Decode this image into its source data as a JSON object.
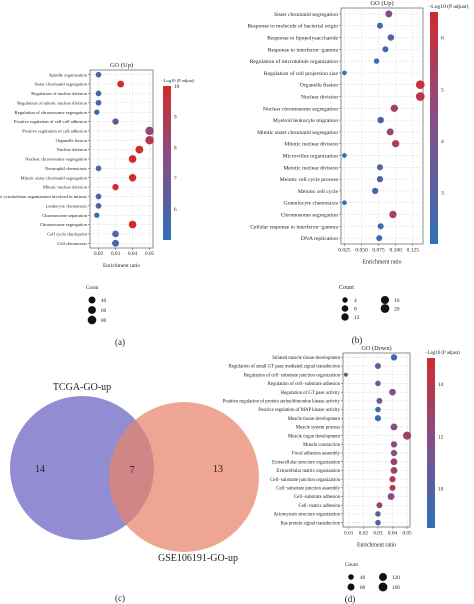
{
  "chart_data": [
    {
      "panel_label": "(a)",
      "type": "scatter",
      "title": "GO (Up)",
      "xlabel": "Enrichment ratio",
      "xlim": [
        0.015,
        0.052
      ],
      "xticks": [
        0.02,
        0.03,
        0.04,
        0.05
      ],
      "xtick_labels": [
        "0.02",
        "0.03",
        "0.04",
        "0.05"
      ],
      "categories": [
        "Spindle organization",
        "Sister chromatid segregation",
        "Regulation of nuclear division",
        "Regulation of mitotic nuclear division",
        "Regulation of chromosome segregation",
        "Positive regulation of cell-cell adhesion",
        "Positive regulation of cell adhesion",
        "Organelle fission",
        "Nuclear division",
        "Nuclear chromosome segregation",
        "Neutrophil chemotaxis",
        "Mitotic sister chromatid segregation",
        "Mitotic nuclear division",
        "Microtubule cytoskeleton organization involved in mitosis",
        "Leukocyte chemotaxis",
        "Chromosome separation",
        "Chromosome segregation",
        "Cell cycle checkpoint",
        "Cell chemotaxis"
      ],
      "x": [
        0.02,
        0.033,
        0.02,
        0.02,
        0.019,
        0.03,
        0.05,
        0.05,
        0.044,
        0.04,
        0.02,
        0.04,
        0.03,
        0.02,
        0.02,
        0.019,
        0.04,
        0.03,
        0.03
      ],
      "count": [
        20,
        40,
        20,
        20,
        15,
        30,
        75,
        75,
        60,
        55,
        20,
        50,
        30,
        20,
        20,
        15,
        55,
        35,
        40
      ],
      "padj": [
        6,
        10,
        6,
        6,
        5,
        7,
        8,
        9,
        10,
        10,
        6,
        10,
        10,
        6,
        6,
        5,
        10,
        6,
        6
      ],
      "color_label": "−Log10 (P adjust)",
      "color_range": [
        5,
        10
      ],
      "color_ticks": [
        6,
        7,
        8,
        9,
        10
      ],
      "size_legend_title": "Count",
      "size_legend": [
        40,
        60,
        80
      ],
      "size_range": [
        0,
        90
      ]
    },
    {
      "panel_label": "(b)",
      "type": "scatter",
      "title": "GO (Up)",
      "xlabel": "Enrichment ratio",
      "xlim": [
        0.02,
        0.14
      ],
      "xticks": [
        0.025,
        0.05,
        0.075,
        0.1,
        0.125
      ],
      "xtick_labels": [
        "0.025",
        "0.050",
        "0.075",
        "0.100",
        "0.125"
      ],
      "categories": [
        "Sister chromatid segregation",
        "Response to molecule of bacterial origin",
        "Response to lipopolysaccharide",
        "Response to interferon−gamma",
        "Regulation of microtubule organization",
        "Regulation of cell projection size",
        "Organelle fission",
        "Nuclear division",
        "Nuclear chromosome segregation",
        "Myeloid leukocyte migration",
        "Mitotic sister chromatid segregation",
        "Mitotic nuclear division",
        "Microvillus organization",
        "Meiotic nuclear division",
        "Meiotic cell cycle process",
        "Meiotic cell cycle",
        "Granulocyte chemotaxis",
        "Chromosome segregation",
        "Cellular response to interferon−gamma",
        "DNA replication"
      ],
      "x": [
        0.09,
        0.077,
        0.093,
        0.085,
        0.072,
        0.025,
        0.136,
        0.136,
        0.098,
        0.078,
        0.092,
        0.1,
        0.025,
        0.077,
        0.077,
        0.07,
        0.025,
        0.096,
        0.078,
        0.076
      ],
      "count": [
        10,
        6,
        8,
        6,
        4,
        2,
        20,
        20,
        12,
        8,
        10,
        12,
        2,
        6,
        7,
        7,
        2,
        12,
        6,
        6
      ],
      "padj": [
        4.5,
        2.5,
        3,
        2.5,
        2,
        2,
        6.2,
        5.8,
        5.2,
        3,
        4.8,
        5.5,
        2,
        3,
        3,
        2.5,
        2,
        5,
        2.5,
        2.2
      ],
      "color_label": "−Log10 (P adjust)",
      "color_range": [
        2,
        6.5
      ],
      "color_ticks": [
        3,
        4,
        5,
        6
      ],
      "size_legend_title": "Count",
      "size_legend": [
        4,
        8,
        12,
        16,
        20
      ],
      "size_range": [
        0,
        22
      ]
    },
    {
      "panel_label": "(c)",
      "type": "venn",
      "sets": [
        "TCGA-GO-up",
        "GSE106191-GO-up"
      ],
      "only_a": "14",
      "both": "7",
      "only_b": "13",
      "colors": {
        "a": "#7a74c9",
        "b": "#e8836a"
      }
    },
    {
      "panel_label": "(d)",
      "type": "scatter",
      "title": "GO (Down)",
      "xlabel": "Enrichment ratio",
      "xlim": [
        0.006,
        0.052
      ],
      "xticks": [
        0.01,
        0.02,
        0.03,
        0.04,
        0.05
      ],
      "xtick_labels": [
        "0.01",
        "0.02",
        "0.03",
        "0.04",
        "0.05"
      ],
      "categories": [
        "Striated muscle tissue development",
        "Regulation of small GT pase mediated signal transduction",
        "Regulation of cell−substrate junction organization",
        "Regulation of cell−substrate adhesion",
        "Regulation of GT pase activity",
        "Positive regulation of protein serine/threonine kinase activity",
        "Positive regulation of MAP kinase activity",
        "Muscle tissue development",
        "Muscle system process",
        "Muscle organ development",
        "Muscle contraction",
        "Focal adhesion assembly",
        "Extracellular structure organization",
        "Extracellular matrix organization",
        "Cell−substrate junction organization",
        "Cell−substrate junction assembly",
        "Cell−substrate adhesion",
        "Cell−matrix adhesion",
        "Actomyosin structure organization",
        "Ras protein signal transduction"
      ],
      "x": [
        0.041,
        0.03,
        0.008,
        0.03,
        0.04,
        0.031,
        0.03,
        0.03,
        0.041,
        0.05,
        0.041,
        0.041,
        0.041,
        0.041,
        0.04,
        0.04,
        0.039,
        0.031,
        0.03,
        0.03
      ],
      "count": [
        60,
        50,
        10,
        40,
        70,
        50,
        40,
        55,
        75,
        130,
        60,
        60,
        75,
        75,
        55,
        50,
        80,
        50,
        40,
        40
      ],
      "padj": [
        9,
        11,
        12,
        11,
        12,
        11,
        9,
        9,
        12,
        13,
        12,
        12,
        13,
        13,
        14,
        14,
        12,
        13,
        10,
        10
      ],
      "color_label": "−Log10 (P adjust)",
      "color_range": [
        8.5,
        15
      ],
      "color_ticks": [
        10,
        12,
        14
      ],
      "size_legend_title": "Count",
      "size_legend": [
        40,
        80,
        120,
        160
      ],
      "size_range": [
        0,
        170
      ]
    }
  ]
}
